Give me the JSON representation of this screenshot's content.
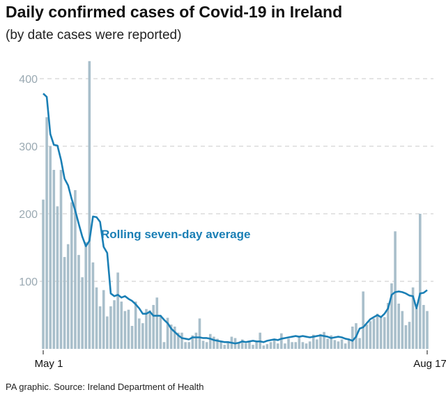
{
  "chart_data": {
    "type": "bar",
    "title": "Daily confirmed cases of Covid-19 in Ireland",
    "subtitle": "(by date cases were reported)",
    "source": "PA graphic. Source: Ireland Department of Health",
    "x_start": "May 1",
    "x_end": "Aug 17",
    "xticks": [
      "May 1",
      "Aug 17"
    ],
    "yticks": [
      100,
      200,
      300,
      400
    ],
    "ylim": [
      0,
      430
    ],
    "grid": true,
    "colors": {
      "bars": "#a9bfcb",
      "line": "#1a7fb5",
      "grid": "#c8c8c8"
    },
    "series": [
      {
        "type": "bar",
        "values": [
          221,
          343,
          300,
          265,
          211,
          265,
          136,
          155,
          217,
          235,
          139,
          106,
          158,
          426,
          128,
          91,
          63,
          87,
          48,
          63,
          72,
          113,
          70,
          56,
          58,
          34,
          70,
          45,
          38,
          59,
          57,
          65,
          76,
          50,
          10,
          46,
          36,
          33,
          24,
          24,
          10,
          10,
          20,
          24,
          45,
          12,
          10,
          22,
          18,
          15,
          11,
          6,
          10,
          18,
          16,
          10,
          14,
          8,
          12,
          6,
          10,
          24,
          5,
          7,
          10,
          13,
          8,
          23,
          8,
          15,
          10,
          10,
          18,
          10,
          8,
          11,
          21,
          14,
          22,
          25,
          15,
          20,
          13,
          11,
          14,
          8,
          14,
          33,
          38,
          16,
          85,
          36,
          41,
          45,
          52,
          48,
          47,
          68,
          97,
          174,
          67,
          56,
          35,
          40,
          91,
          60,
          200,
          65,
          56
        ]
      },
      {
        "type": "line",
        "name": "Rolling seven-day average",
        "values": [
          378,
          373,
          318,
          302,
          301,
          280,
          252,
          242,
          222,
          205,
          185,
          166,
          152,
          160,
          196,
          195,
          188,
          151,
          142,
          82,
          78,
          80,
          76,
          78,
          74,
          71,
          66,
          60,
          52,
          52,
          55,
          49,
          49,
          49,
          43,
          38,
          30,
          25,
          20,
          16,
          15,
          14,
          17,
          17,
          17,
          16,
          16,
          15,
          13,
          12,
          11,
          10,
          10,
          9,
          8,
          9,
          11,
          10,
          11,
          12,
          11,
          11,
          10,
          12,
          13,
          14,
          13,
          15,
          16,
          17,
          18,
          19,
          18,
          19,
          18,
          17,
          18,
          19,
          20,
          19,
          18,
          16,
          17,
          18,
          17,
          15,
          14,
          12,
          18,
          30,
          32,
          38,
          44,
          47,
          50,
          47,
          52,
          60,
          80,
          84,
          85,
          84,
          82,
          79,
          78,
          60,
          82,
          83,
          87
        ]
      }
    ]
  }
}
